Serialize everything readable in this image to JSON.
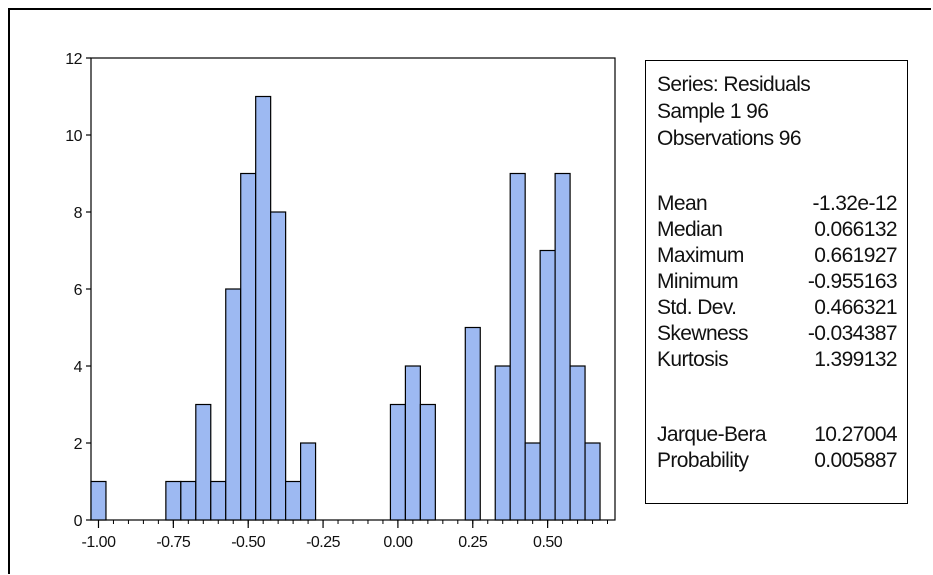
{
  "chart_data": {
    "type": "bar",
    "title": "",
    "xlabel": "",
    "ylabel": "",
    "bin_width": 0.05,
    "bins": [
      {
        "x": -1.0,
        "count": 1
      },
      {
        "x": -0.95,
        "count": 0
      },
      {
        "x": -0.9,
        "count": 0
      },
      {
        "x": -0.85,
        "count": 0
      },
      {
        "x": -0.8,
        "count": 0
      },
      {
        "x": -0.75,
        "count": 1
      },
      {
        "x": -0.7,
        "count": 1
      },
      {
        "x": -0.65,
        "count": 3
      },
      {
        "x": -0.6,
        "count": 1
      },
      {
        "x": -0.55,
        "count": 6
      },
      {
        "x": -0.5,
        "count": 9
      },
      {
        "x": -0.45,
        "count": 11
      },
      {
        "x": -0.4,
        "count": 8
      },
      {
        "x": -0.35,
        "count": 1
      },
      {
        "x": -0.3,
        "count": 2
      },
      {
        "x": -0.25,
        "count": 0
      },
      {
        "x": -0.2,
        "count": 0
      },
      {
        "x": -0.15,
        "count": 0
      },
      {
        "x": -0.1,
        "count": 0
      },
      {
        "x": -0.05,
        "count": 0
      },
      {
        "x": 0.0,
        "count": 3
      },
      {
        "x": 0.05,
        "count": 4
      },
      {
        "x": 0.1,
        "count": 3
      },
      {
        "x": 0.15,
        "count": 0
      },
      {
        "x": 0.2,
        "count": 0
      },
      {
        "x": 0.25,
        "count": 5
      },
      {
        "x": 0.3,
        "count": 0
      },
      {
        "x": 0.35,
        "count": 4
      },
      {
        "x": 0.4,
        "count": 9
      },
      {
        "x": 0.45,
        "count": 2
      },
      {
        "x": 0.5,
        "count": 7
      },
      {
        "x": 0.55,
        "count": 9
      },
      {
        "x": 0.6,
        "count": 4
      },
      {
        "x": 0.65,
        "count": 2
      }
    ],
    "xlim": [
      -1.025,
      0.725
    ],
    "ylim": [
      0,
      12
    ],
    "x_ticks": [
      -1.0,
      -0.75,
      -0.5,
      -0.25,
      0.0,
      0.25,
      0.5
    ],
    "x_tick_labels": [
      "-1.00",
      "-0.75",
      "-0.50",
      "-0.25",
      "0.00",
      "0.25",
      "0.50"
    ],
    "y_ticks": [
      0,
      2,
      4,
      6,
      8,
      10,
      12
    ],
    "y_tick_labels": [
      "0",
      "2",
      "4",
      "6",
      "8",
      "10",
      "12"
    ],
    "bar_color": "#9db9f2",
    "bar_edge_color": "#000000"
  },
  "stats": {
    "series": "Series: Residuals",
    "sample": "Sample 1 96",
    "observations": "Observations 96",
    "rows": [
      {
        "label": "Mean",
        "value": "-1.32e-12"
      },
      {
        "label": "Median",
        "value": "0.066132"
      },
      {
        "label": "Maximum",
        "value": "0.661927"
      },
      {
        "label": "Minimum",
        "value": "-0.955163"
      },
      {
        "label": "Std. Dev.",
        "value": "0.466321"
      },
      {
        "label": "Skewness",
        "value": "-0.034387"
      },
      {
        "label": "Kurtosis",
        "value": "1.399132"
      }
    ],
    "test_rows": [
      {
        "label": "Jarque-Bera",
        "value": "10.27004"
      },
      {
        "label": "Probability",
        "value": "0.005887"
      }
    ]
  }
}
